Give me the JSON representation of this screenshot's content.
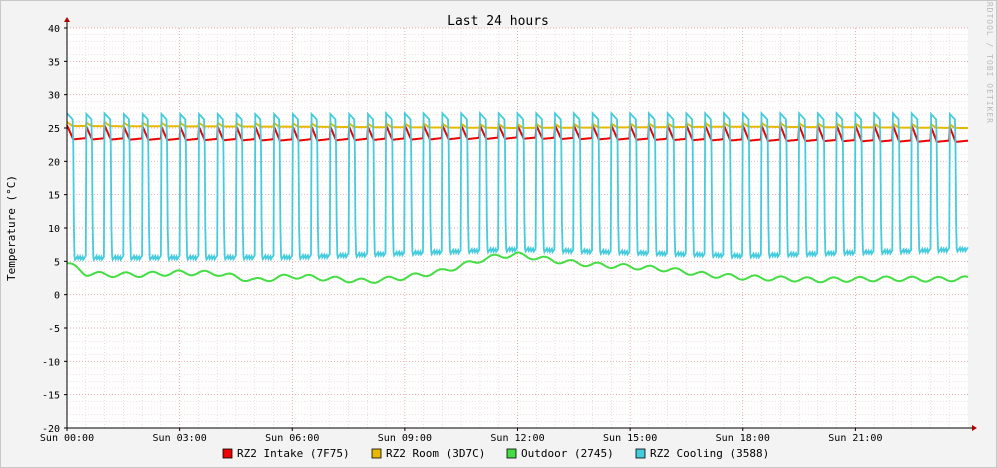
{
  "chart_data": {
    "type": "line",
    "title": "Last 24 hours",
    "ylabel": "Temperature (°C)",
    "watermark": "RRDTOOL / TOBI OETIKER",
    "ylim": [
      -20,
      40
    ],
    "xlim_hours": [
      0,
      24
    ],
    "y_ticks": [
      40,
      35,
      30,
      25,
      20,
      15,
      10,
      5,
      0,
      -5,
      -10,
      -15,
      -20
    ],
    "y_tick_labels": [
      "40",
      "35",
      "30",
      "25",
      "20",
      "15",
      "10",
      "5",
      "0",
      "-5",
      "-10",
      "-15",
      "-20"
    ],
    "x_ticks_hours": [
      0,
      3,
      6,
      9,
      12,
      15,
      18,
      21
    ],
    "x_tick_labels": [
      "Sun 00:00",
      "Sun 03:00",
      "Sun 06:00",
      "Sun 09:00",
      "Sun 12:00",
      "Sun 15:00",
      "Sun 18:00",
      "Sun 21:00"
    ],
    "grid": true,
    "legend_position": "bottom",
    "series": [
      {
        "name": "RZ2 Intake (7F75)",
        "color": "#ee0000",
        "cycle_hours": 0.5,
        "range": [
          22.8,
          25.4
        ],
        "x_hours": [
          0,
          6,
          12,
          18,
          24
        ],
        "values": [
          23.2,
          23.0,
          23.3,
          23.0,
          22.8
        ]
      },
      {
        "name": "RZ2 Room (3D7C)",
        "color": "#e8b800",
        "cycle_hours": 0.5,
        "range": [
          24.8,
          25.9
        ],
        "x_hours": [
          0,
          6,
          12,
          18,
          24
        ],
        "values": [
          25.3,
          25.2,
          25.0,
          25.2,
          25.0
        ]
      },
      {
        "name": "Outdoor (2745)",
        "color": "#44dd44",
        "x_hours": [
          0,
          0.5,
          1,
          2,
          3,
          4,
          5,
          6,
          7,
          8,
          9,
          10,
          11,
          11.5,
          12,
          13,
          14,
          15,
          16,
          17,
          18,
          19,
          20,
          21,
          22,
          23,
          24
        ],
        "values": [
          4.7,
          3.2,
          3.0,
          3.0,
          3.3,
          3.2,
          2.1,
          2.8,
          2.4,
          2.0,
          2.6,
          3.5,
          5.2,
          5.8,
          6.0,
          5.1,
          4.5,
          4.2,
          3.8,
          3.0,
          2.6,
          2.4,
          2.2,
          2.3,
          2.4,
          2.3,
          2.4
        ]
      },
      {
        "name": "RZ2 Cooling (3588)",
        "color": "#44ccdd",
        "cycle_hours": 0.5,
        "range": [
          5.0,
          27.2
        ],
        "x_hours": [
          0,
          6,
          12,
          18,
          24
        ],
        "values": [
          5.2,
          5.3,
          6.5,
          5.5,
          6.5
        ]
      }
    ]
  }
}
